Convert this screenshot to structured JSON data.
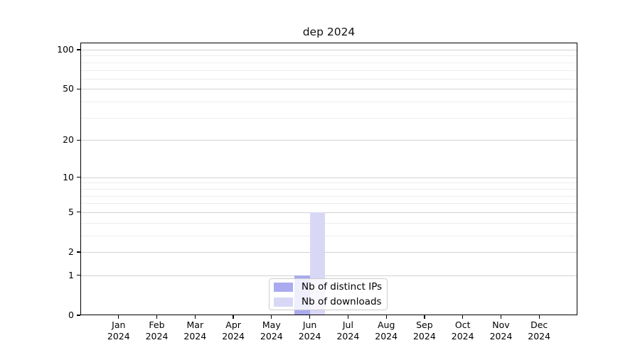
{
  "chart_data": {
    "type": "bar",
    "title": "dep 2024",
    "categories": [
      "Jan",
      "Feb",
      "Mar",
      "Apr",
      "May",
      "Jun",
      "Jul",
      "Aug",
      "Sep",
      "Oct",
      "Nov",
      "Dec"
    ],
    "year_label": "2024",
    "series": [
      {
        "name": "Nb of distinct IPs",
        "color": "#aaaaee",
        "values": [
          0,
          0,
          0,
          0,
          0,
          1,
          0,
          0,
          0,
          0,
          0,
          0
        ]
      },
      {
        "name": "Nb of downloads",
        "color": "#d8d8f6",
        "values": [
          0,
          0,
          0,
          0,
          0,
          5,
          0,
          0,
          0,
          0,
          0,
          0
        ]
      }
    ],
    "y_scale": "log1p",
    "y_major_ticks": [
      0,
      1,
      2,
      5,
      10,
      20,
      50,
      100
    ],
    "y_minor_ticks": [
      3,
      4,
      6,
      7,
      8,
      9,
      30,
      40,
      60,
      70,
      80,
      90
    ],
    "ylim": [
      0,
      113
    ],
    "grid": true,
    "legend_position": "bottom-center",
    "axis_color": "#000000",
    "grid_major_color": "#d2d2d2",
    "grid_minor_color": "#ededed"
  }
}
